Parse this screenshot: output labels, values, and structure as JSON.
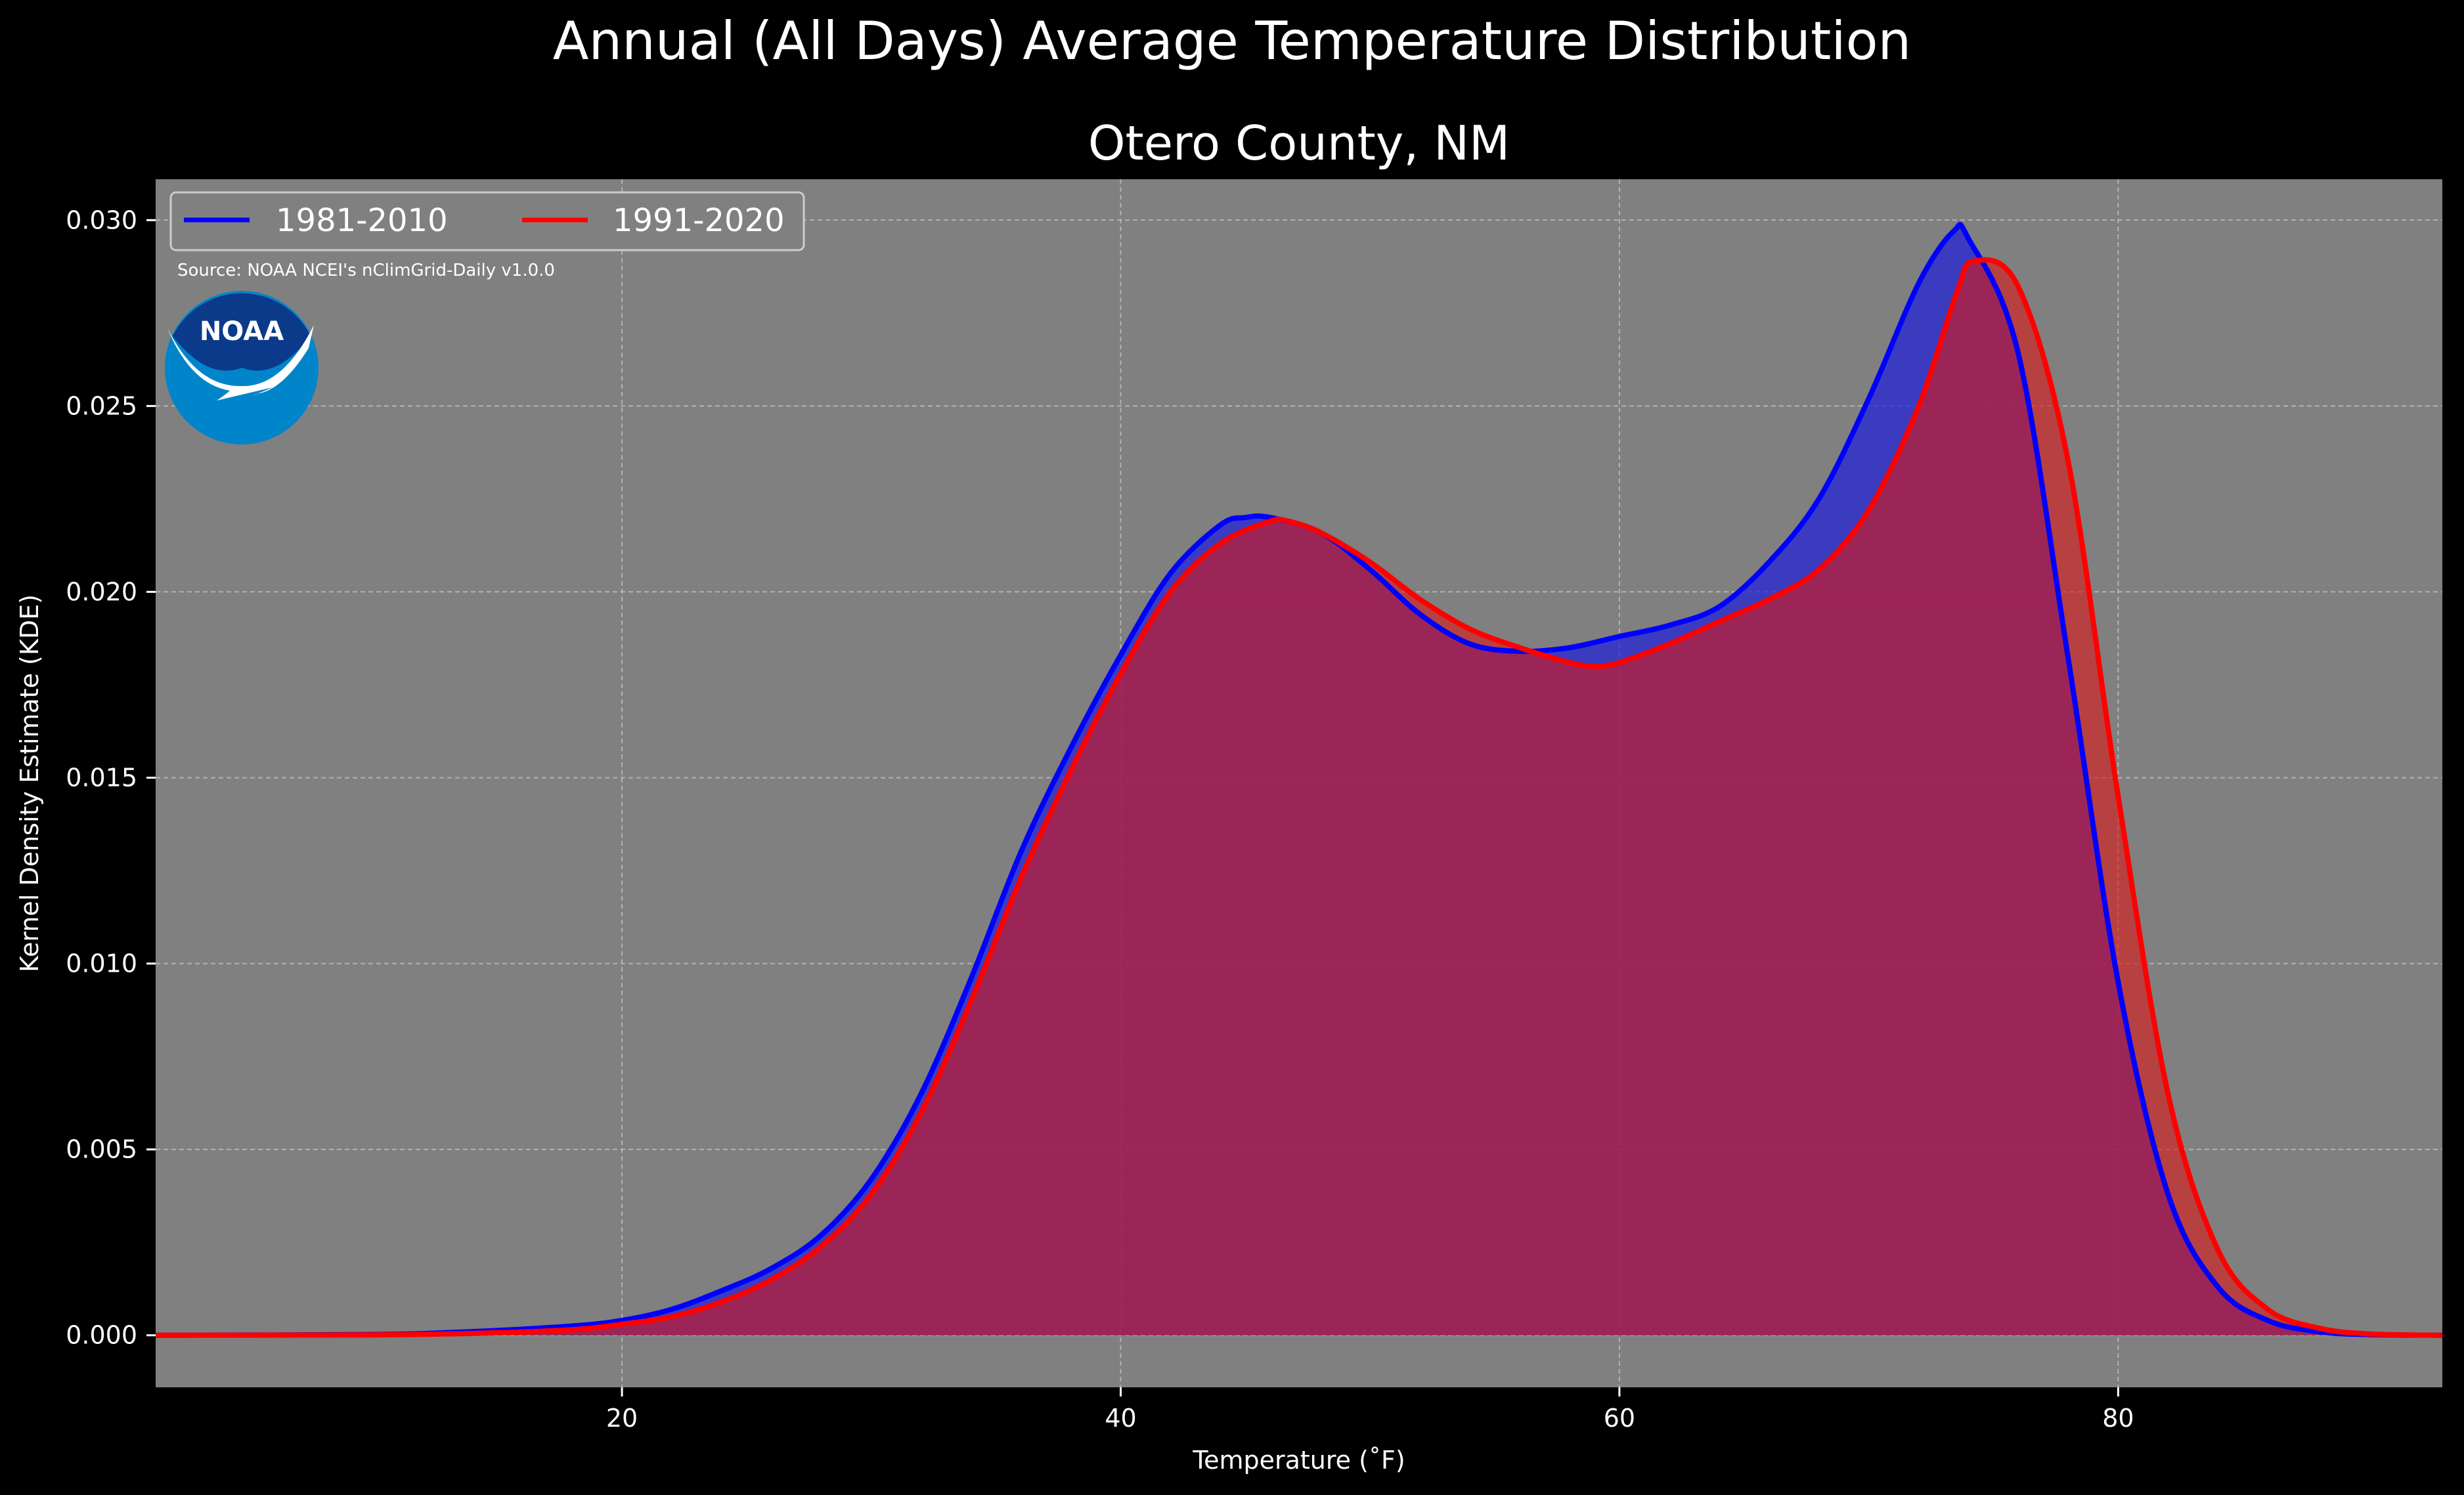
{
  "chart_data": {
    "type": "area",
    "suptitle": "Annual (All Days) Average Temperature Distribution",
    "title": "Otero County, NM",
    "xlabel": "Temperature ($^\\circ$F)",
    "xlabel_display": "Temperature (˚F)",
    "ylabel": "Kernel Density Estimate (KDE)",
    "xlim": [
      1.3,
      93.0
    ],
    "ylim": [
      -0.0014,
      0.0311
    ],
    "xticks": [
      20,
      40,
      60,
      80
    ],
    "xtick_labels": [
      "20",
      "40",
      "60",
      "80"
    ],
    "yticks": [
      0.0,
      0.005,
      0.01,
      0.015,
      0.02,
      0.025,
      0.03
    ],
    "ytick_labels": [
      "0.000",
      "0.005",
      "0.010",
      "0.015",
      "0.020",
      "0.025",
      "0.030"
    ],
    "grid": true,
    "legend_position": "top-left",
    "source": "Source: NOAA NCEI's nClimGrid-Daily v1.0.0",
    "logo_text": "NOAA",
    "colors": {
      "figure_bg": "#000000",
      "axes_bg": "#808080",
      "series_1981": "#0000ff",
      "series_1991": "#ff0000",
      "fill_overlap": "#9e1f5a"
    },
    "series": [
      {
        "name": "1981-2010",
        "color": "#0000ff",
        "x": [
          1.3,
          10,
          14,
          18,
          20,
          22,
          24,
          26,
          28,
          30,
          32,
          34,
          36,
          38,
          40,
          42,
          44,
          45,
          46,
          48,
          50,
          52,
          54,
          56,
          58,
          60,
          62,
          64,
          66,
          68,
          70,
          72,
          73.4,
          74,
          76,
          78,
          80,
          82,
          84,
          86,
          88,
          90,
          93
        ],
        "y": [
          0.0,
          2e-05,
          0.0001,
          0.00025,
          0.0004,
          0.0007,
          0.0012,
          0.0018,
          0.0027,
          0.0042,
          0.0065,
          0.0096,
          0.013,
          0.0158,
          0.0183,
          0.0205,
          0.0218,
          0.022,
          0.022,
          0.0216,
          0.0206,
          0.0194,
          0.0186,
          0.0184,
          0.0185,
          0.0188,
          0.0191,
          0.0196,
          0.0208,
          0.0225,
          0.0252,
          0.0283,
          0.0297,
          0.0295,
          0.0264,
          0.0182,
          0.0095,
          0.0038,
          0.0013,
          0.0004,
          0.0001,
          2e-05,
          0.0
        ]
      },
      {
        "name": "1991-2020",
        "color": "#ff0000",
        "x": [
          1.3,
          10,
          14,
          18,
          20,
          22,
          24,
          26,
          28,
          30,
          32,
          34,
          36,
          38,
          40,
          42,
          44,
          46,
          46.7,
          48,
          50,
          52,
          54,
          56,
          58,
          59,
          60,
          62,
          64,
          66,
          68,
          70,
          72,
          73.5,
          74.2,
          76,
          78,
          80,
          82,
          84,
          86,
          88,
          90,
          93
        ],
        "y": [
          0.0,
          1e-05,
          5e-05,
          0.00015,
          0.0003,
          0.0005,
          0.0009,
          0.0015,
          0.0024,
          0.0038,
          0.006,
          0.009,
          0.0123,
          0.0152,
          0.0178,
          0.02,
          0.0213,
          0.0219,
          0.0219,
          0.0216,
          0.0208,
          0.0198,
          0.019,
          0.0185,
          0.0181,
          0.018,
          0.0181,
          0.0186,
          0.0192,
          0.0198,
          0.0206,
          0.0222,
          0.025,
          0.028,
          0.0289,
          0.0282,
          0.0235,
          0.0145,
          0.0065,
          0.0023,
          0.0007,
          0.0002,
          4e-05,
          0.0
        ]
      }
    ]
  }
}
